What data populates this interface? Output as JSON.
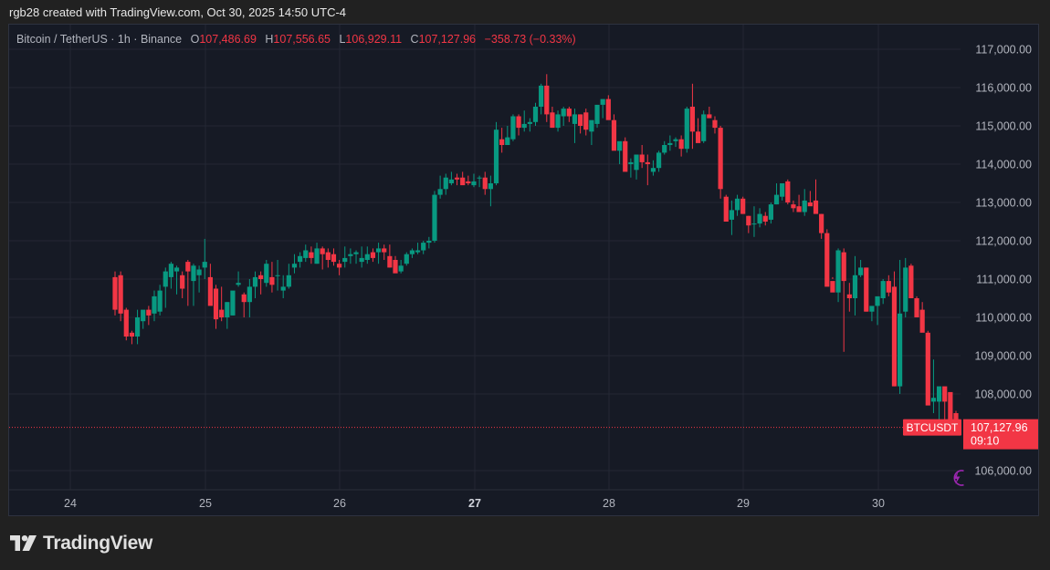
{
  "attribution": "rgb28 created with TradingView.com, Oct 30, 2025 14:50 UTC-4",
  "legend": {
    "symbol_desc": "Bitcoin / TetherUS · 1h · Binance",
    "o_label": "O",
    "o_value": "107,486.69",
    "h_label": "H",
    "h_value": "107,556.65",
    "l_label": "L",
    "l_value": "106,929.11",
    "c_label": "C",
    "c_value": "107,127.96",
    "change": "−358.73 (−0.33%)"
  },
  "price_tag": {
    "symbol": "BTCUSDT",
    "price": "107,127.96",
    "countdown": "09:10"
  },
  "brand": {
    "name": "TradingView"
  },
  "colors": {
    "up": "#089981",
    "down": "#f23645",
    "grid": "#242733",
    "axis_text": "#b2b5be",
    "panel_bg": "#161a25",
    "page_bg": "#212121",
    "alert_icon": "#9c27b0"
  },
  "chart_data": {
    "type": "candlestick",
    "title": "Bitcoin / TetherUS · 1h · Binance",
    "symbol": "BTCUSDT",
    "interval": "1h",
    "xlabel": "",
    "ylabel": "",
    "ylim": [
      105500,
      117600
    ],
    "y_ticks": [
      "117,000.00",
      "116,000.00",
      "115,000.00",
      "114,000.00",
      "113,000.00",
      "112,000.00",
      "111,000.00",
      "110,000.00",
      "109,000.00",
      "108,000.00",
      "106,000.00"
    ],
    "y_tick_values": [
      117000,
      116000,
      115000,
      114000,
      113000,
      112000,
      111000,
      110000,
      109000,
      108000,
      106000
    ],
    "x_ticks": [
      {
        "label": "24",
        "bold": false
      },
      {
        "label": "25",
        "bold": false
      },
      {
        "label": "26",
        "bold": false
      },
      {
        "label": "27",
        "bold": true
      },
      {
        "label": "28",
        "bold": false
      },
      {
        "label": "29",
        "bold": false
      },
      {
        "label": "30",
        "bold": false
      }
    ],
    "grid": true,
    "last_price": 107127.96,
    "candles_ohlc": [
      [
        111050,
        111200,
        110050,
        110200
      ],
      [
        111100,
        111200,
        109900,
        110100
      ],
      [
        110200,
        110250,
        109400,
        109500
      ],
      [
        109600,
        109650,
        109300,
        109500
      ],
      [
        109500,
        110200,
        109300,
        110000
      ],
      [
        109900,
        110150,
        109700,
        110200
      ],
      [
        110200,
        110300,
        109800,
        110050
      ],
      [
        110100,
        110700,
        109900,
        110550
      ],
      [
        110150,
        110850,
        110050,
        110700
      ],
      [
        110800,
        111300,
        110250,
        111200
      ],
      [
        111050,
        111450,
        110750,
        111400
      ],
      [
        111200,
        111350,
        110600,
        111300
      ],
      [
        111100,
        111200,
        110500,
        110750
      ],
      [
        111450,
        111500,
        110300,
        111200
      ],
      [
        110950,
        111400,
        110300,
        111350
      ],
      [
        111100,
        111350,
        110650,
        111250
      ],
      [
        111300,
        112050,
        111000,
        111450
      ],
      [
        111050,
        111400,
        110450,
        110300
      ],
      [
        110750,
        110850,
        109700,
        109950
      ],
      [
        110200,
        110800,
        109900,
        110000
      ],
      [
        110000,
        110400,
        109700,
        110400
      ],
      [
        110050,
        110650,
        110050,
        110700
      ],
      [
        110850,
        111200,
        110800,
        110900
      ],
      [
        110600,
        110650,
        110000,
        110400
      ],
      [
        110400,
        111000,
        110000,
        110800
      ],
      [
        110800,
        111200,
        110500,
        111050
      ],
      [
        111100,
        111200,
        110600,
        111000
      ],
      [
        110900,
        111500,
        110800,
        111400
      ],
      [
        111050,
        111450,
        110650,
        110850
      ],
      [
        111100,
        111500,
        110700,
        111100
      ],
      [
        110700,
        111100,
        110500,
        110800
      ],
      [
        110800,
        111400,
        110750,
        111100
      ],
      [
        111300,
        111650,
        111150,
        111400
      ],
      [
        111450,
        111700,
        111300,
        111600
      ],
      [
        111550,
        111900,
        111450,
        111750
      ],
      [
        111700,
        111850,
        111400,
        111550
      ],
      [
        111400,
        111950,
        111400,
        111800
      ],
      [
        111800,
        111850,
        111250,
        111650
      ],
      [
        111700,
        111800,
        111300,
        111500
      ],
      [
        111650,
        111800,
        111350,
        111450
      ],
      [
        111400,
        111500,
        111100,
        111300
      ],
      [
        111450,
        111850,
        111300,
        111550
      ],
      [
        111600,
        111800,
        111400,
        111650
      ],
      [
        111650,
        111750,
        111400,
        111700
      ],
      [
        111450,
        111850,
        111300,
        111550
      ],
      [
        111500,
        111850,
        111400,
        111650
      ],
      [
        111700,
        111800,
        111450,
        111550
      ],
      [
        111700,
        111950,
        111400,
        111800
      ],
      [
        111800,
        111900,
        111500,
        111700
      ],
      [
        111600,
        111900,
        111300,
        111300
      ],
      [
        111500,
        111600,
        111200,
        111150
      ],
      [
        111200,
        111500,
        111150,
        111350
      ],
      [
        111400,
        111700,
        111350,
        111650
      ],
      [
        111650,
        111800,
        111550,
        111750
      ],
      [
        111700,
        111950,
        111650,
        111750
      ],
      [
        111750,
        112000,
        111650,
        111950
      ],
      [
        111950,
        112100,
        111800,
        112000
      ],
      [
        112000,
        113300,
        111950,
        113200
      ],
      [
        113200,
        113700,
        113100,
        113350
      ],
      [
        113350,
        113750,
        113200,
        113650
      ],
      [
        113500,
        113800,
        113450,
        113600
      ],
      [
        113650,
        113750,
        113450,
        113600
      ],
      [
        113650,
        113800,
        113500,
        113450
      ],
      [
        113550,
        113700,
        113450,
        113500
      ],
      [
        113450,
        113750,
        113400,
        113550
      ],
      [
        113650,
        113700,
        113400,
        113650
      ],
      [
        113650,
        113800,
        113200,
        113350
      ],
      [
        113350,
        113700,
        112900,
        113500
      ],
      [
        113500,
        115100,
        113450,
        114900
      ],
      [
        114650,
        114950,
        114300,
        114500
      ],
      [
        114500,
        115000,
        114500,
        114700
      ],
      [
        114650,
        115300,
        114600,
        115250
      ],
      [
        115250,
        115300,
        114750,
        114950
      ],
      [
        114950,
        115400,
        114850,
        115050
      ],
      [
        115050,
        115200,
        114850,
        115100
      ],
      [
        115100,
        115600,
        115000,
        115500
      ],
      [
        115500,
        116100,
        115300,
        116050
      ],
      [
        116050,
        116350,
        115100,
        115300
      ],
      [
        115350,
        115500,
        114950,
        114950
      ],
      [
        114950,
        115400,
        114850,
        115300
      ],
      [
        115250,
        115500,
        115000,
        115450
      ],
      [
        115450,
        115500,
        115100,
        115250
      ],
      [
        115050,
        115450,
        114550,
        115300
      ],
      [
        115300,
        115300,
        114800,
        115000
      ],
      [
        115350,
        115450,
        114750,
        114900
      ],
      [
        114850,
        115050,
        114500,
        115150
      ],
      [
        115050,
        115500,
        114950,
        115550
      ],
      [
        115550,
        115650,
        115200,
        115700
      ],
      [
        115700,
        115800,
        115400,
        115150
      ],
      [
        115150,
        115300,
        114850,
        114350
      ],
      [
        114350,
        114400,
        114000,
        114600
      ],
      [
        114600,
        114700,
        113900,
        113800
      ],
      [
        114000,
        114150,
        113650,
        114050
      ],
      [
        113850,
        114100,
        113600,
        114250
      ],
      [
        114250,
        114500,
        113900,
        114050
      ],
      [
        114050,
        114250,
        113450,
        114000
      ],
      [
        113800,
        114100,
        113700,
        113900
      ],
      [
        113900,
        114350,
        113800,
        114300
      ],
      [
        114300,
        114600,
        114250,
        114500
      ],
      [
        114500,
        114750,
        114350,
        114550
      ],
      [
        114600,
        114700,
        114450,
        114650
      ],
      [
        114650,
        114750,
        114200,
        114400
      ],
      [
        114400,
        115500,
        114300,
        115450
      ],
      [
        115500,
        116100,
        114400,
        114850
      ],
      [
        114850,
        115200,
        114650,
        114550
      ],
      [
        114600,
        115400,
        114550,
        115300
      ],
      [
        115300,
        115500,
        115250,
        115200
      ],
      [
        115150,
        115250,
        114800,
        114950
      ],
      [
        114950,
        115000,
        113100,
        113350
      ],
      [
        113150,
        113200,
        112800,
        112500
      ],
      [
        112550,
        113050,
        112150,
        112800
      ],
      [
        112800,
        113200,
        112650,
        113100
      ],
      [
        113100,
        113150,
        112700,
        112700
      ],
      [
        112650,
        112650,
        112200,
        112400
      ],
      [
        112450,
        112900,
        112100,
        112450
      ],
      [
        112450,
        112850,
        112350,
        112700
      ],
      [
        112650,
        112750,
        112400,
        112500
      ],
      [
        112550,
        113000,
        112450,
        112950
      ],
      [
        112950,
        113500,
        112950,
        113200
      ],
      [
        113150,
        113450,
        113050,
        113500
      ],
      [
        113550,
        113600,
        112950,
        113000
      ],
      [
        112950,
        113050,
        112750,
        112850
      ],
      [
        112900,
        113200,
        112800,
        112750
      ],
      [
        112750,
        113350,
        112650,
        113050
      ],
      [
        113000,
        113300,
        112950,
        112900
      ],
      [
        113050,
        113600,
        112900,
        112700
      ],
      [
        112700,
        112700,
        112050,
        112200
      ],
      [
        112200,
        112300,
        111850,
        110800
      ],
      [
        110950,
        111050,
        111000,
        110650
      ],
      [
        110650,
        111800,
        110400,
        111750
      ],
      [
        111700,
        111800,
        109100,
        110950
      ],
      [
        110600,
        110900,
        110150,
        110500
      ],
      [
        110500,
        111600,
        110050,
        111100
      ],
      [
        111100,
        111500,
        111050,
        111300
      ],
      [
        111300,
        111300,
        110150,
        110150
      ],
      [
        110150,
        110200,
        109900,
        110300
      ],
      [
        110300,
        110500,
        109800,
        110550
      ],
      [
        110500,
        111000,
        110350,
        110950
      ],
      [
        110950,
        111100,
        110550,
        110650
      ],
      [
        110800,
        111200,
        108200,
        108200
      ],
      [
        108200,
        111500,
        108000,
        110100
      ],
      [
        110150,
        111550,
        110000,
        111300
      ],
      [
        111350,
        111400,
        110600,
        110500
      ],
      [
        110500,
        110550,
        110200,
        110000
      ],
      [
        110200,
        110400,
        109750,
        109600
      ],
      [
        109600,
        109650,
        108300,
        107700
      ],
      [
        107800,
        108900,
        107500,
        107900
      ],
      [
        107800,
        108000,
        107300,
        108200
      ],
      [
        108200,
        108100,
        107300,
        107800
      ],
      [
        108050,
        108000,
        107700,
        107300
      ],
      [
        107500,
        107560,
        106930,
        107128
      ]
    ]
  }
}
